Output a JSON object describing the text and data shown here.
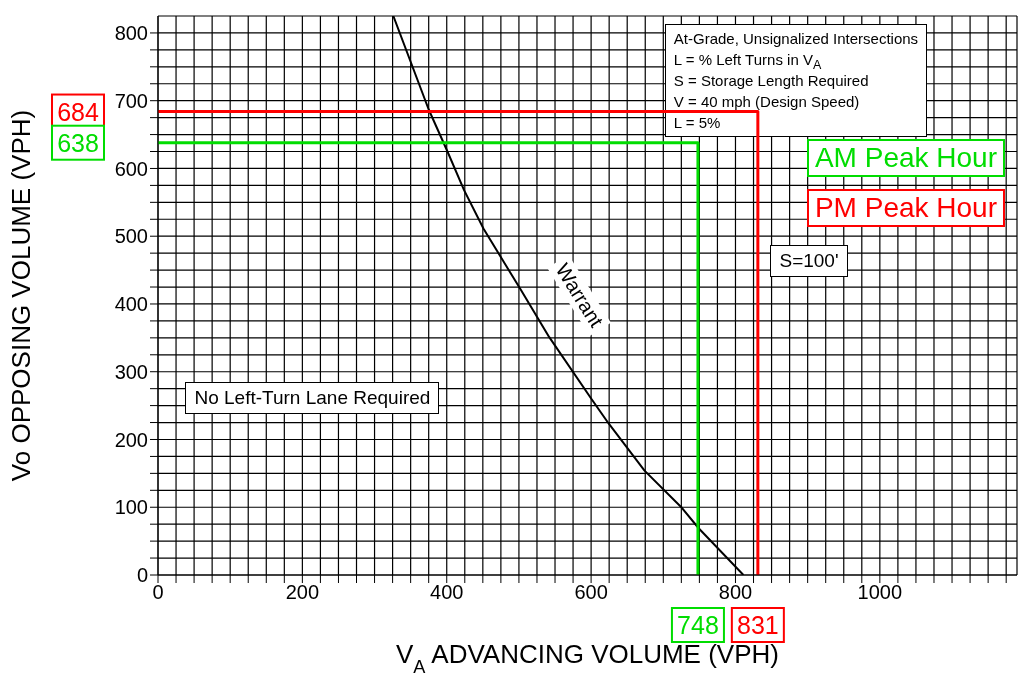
{
  "chart_data": {
    "type": "line",
    "xlabel": "V$_{A}$ ADVANCING VOLUME (VPH)",
    "ylabel": "Vo OPPOSING VOLUME (VPH)",
    "xlim": [
      0,
      1190
    ],
    "ylim": [
      0,
      825
    ],
    "xticks": [
      0,
      {
        "value": 25,
        "label": null
      },
      {
        "value": 50,
        "label": null
      },
      {
        "value": 75,
        "label": null
      },
      {
        "value": 100,
        "label": null
      },
      {
        "value": 125,
        "label": null
      },
      {
        "value": 150,
        "label": null
      },
      {
        "value": 175,
        "label": null
      },
      200,
      {
        "value": 225,
        "label": null
      },
      {
        "value": 250,
        "label": null
      },
      {
        "value": 275,
        "label": null
      },
      {
        "value": 300,
        "label": null
      },
      {
        "value": 325,
        "label": null
      },
      {
        "value": 350,
        "label": null
      },
      {
        "value": 375,
        "label": null
      },
      400,
      {
        "value": 425,
        "label": null
      },
      {
        "value": 450,
        "label": null
      },
      {
        "value": 475,
        "label": null
      },
      {
        "value": 500,
        "label": null
      },
      {
        "value": 525,
        "label": null
      },
      {
        "value": 550,
        "label": null
      },
      {
        "value": 575,
        "label": null
      },
      600,
      {
        "value": 625,
        "label": null
      },
      {
        "value": 650,
        "label": null
      },
      {
        "value": 675,
        "label": null
      },
      {
        "value": 700,
        "label": null
      },
      {
        "value": 725,
        "label": null
      },
      {
        "value": 750,
        "label": null
      },
      {
        "value": 775,
        "label": null
      },
      800,
      {
        "value": 825,
        "label": null
      },
      {
        "value": 850,
        "label": null
      },
      {
        "value": 875,
        "label": null
      },
      {
        "value": 900,
        "label": null
      },
      {
        "value": 925,
        "label": null
      },
      {
        "value": 950,
        "label": null
      },
      {
        "value": 975,
        "label": null
      },
      1000,
      {
        "value": 1025,
        "label": null
      },
      {
        "value": 1050,
        "label": null
      },
      {
        "value": 1075,
        "label": null
      },
      {
        "value": 1100,
        "label": null
      },
      {
        "value": 1125,
        "label": null
      },
      {
        "value": 1150,
        "label": null
      },
      {
        "value": 1175,
        "label": null
      }
    ],
    "yticks": [
      0,
      {
        "value": 25,
        "label": null
      },
      {
        "value": 50,
        "label": null
      },
      {
        "value": 75,
        "label": null
      },
      100,
      {
        "value": 125,
        "label": null
      },
      {
        "value": 150,
        "label": null
      },
      {
        "value": 175,
        "label": null
      },
      200,
      {
        "value": 225,
        "label": null
      },
      {
        "value": 250,
        "label": null
      },
      {
        "value": 275,
        "label": null
      },
      300,
      {
        "value": 325,
        "label": null
      },
      {
        "value": 350,
        "label": null
      },
      {
        "value": 375,
        "label": null
      },
      400,
      {
        "value": 425,
        "label": null
      },
      {
        "value": 450,
        "label": null
      },
      {
        "value": 475,
        "label": null
      },
      500,
      {
        "value": 525,
        "label": null
      },
      {
        "value": 550,
        "label": null
      },
      {
        "value": 575,
        "label": null
      },
      600,
      {
        "value": 625,
        "label": null
      },
      {
        "value": 650,
        "label": null
      },
      {
        "value": 675,
        "label": null
      },
      700,
      {
        "value": 725,
        "label": null
      },
      {
        "value": 750,
        "label": null
      },
      {
        "value": 775,
        "label": null
      },
      800
    ],
    "grid": true,
    "legend": "top right",
    "series": [
      {
        "color": "#000000",
        "x": [
          326,
          375,
          401,
          424,
          451,
          502,
          542,
          601,
          624,
          674,
          725,
          749,
          811
        ],
        "values": [
          825,
          687,
          625,
          568,
          511,
          422,
          351,
          259,
          224,
          154,
          100,
          69,
          0
        ]
      },
      {
        "name": "AM Peak Hour",
        "color": "#00dd00",
        "x": [
          0,
          748,
          748
        ],
        "values": [
          638,
          638,
          0
        ]
      },
      {
        "name": "PM Peak Hour",
        "color": "#ff0000",
        "x": [
          0,
          831,
          831
        ],
        "values": [
          684,
          684,
          0
        ]
      }
    ],
    "annotations": [
      "At-Grade, Unsignalized Intersections\nL = % Left Turns in V$_{A}$\nS = Storage Length Required\nV = 40 mph (Design Speed)\nL = 5%",
      "No Left-Turn Lane Required",
      "S=100'",
      "Warrant",
      {
        "text": "684",
        "x": 0,
        "y": 684
      },
      {
        "text": "638",
        "x": 0,
        "y": 638
      },
      {
        "text": "748",
        "x": 748,
        "y": 0
      },
      {
        "text": "831",
        "x": 831,
        "y": 0
      }
    ]
  }
}
